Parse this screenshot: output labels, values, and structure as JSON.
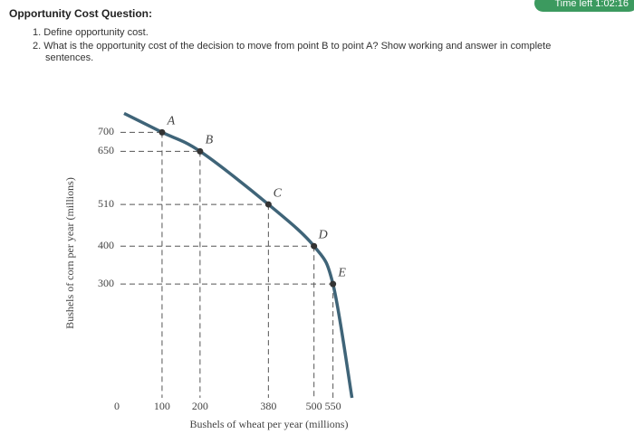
{
  "header": {
    "title": "Opportunity Cost Question:",
    "timer": "Time left 1:02:16"
  },
  "questions": [
    "1. Define opportunity cost.",
    "2. What is the opportunity cost of the decision to move from point B to point A? Show working and answer in complete",
    "sentences."
  ],
  "chart_data": {
    "type": "line",
    "xlabel": "Bushels of wheat per year (millions)",
    "ylabel": "Bushels of corn per year (millions)",
    "x": [
      0,
      100,
      200,
      380,
      500,
      550,
      600
    ],
    "series": [
      {
        "color": "#3f6478",
        "values": [
          750,
          700,
          650,
          510,
          400,
          300,
          0
        ]
      }
    ],
    "point_labels": [
      null,
      "A",
      "B",
      "C",
      "D",
      "E",
      null
    ],
    "xlim": [
      0,
      620
    ],
    "ylim": [
      0,
      770
    ],
    "xticks": [
      0,
      100,
      200,
      380,
      500,
      550
    ],
    "yticks": [
      300,
      400,
      510,
      650,
      700
    ],
    "grid": false
  }
}
